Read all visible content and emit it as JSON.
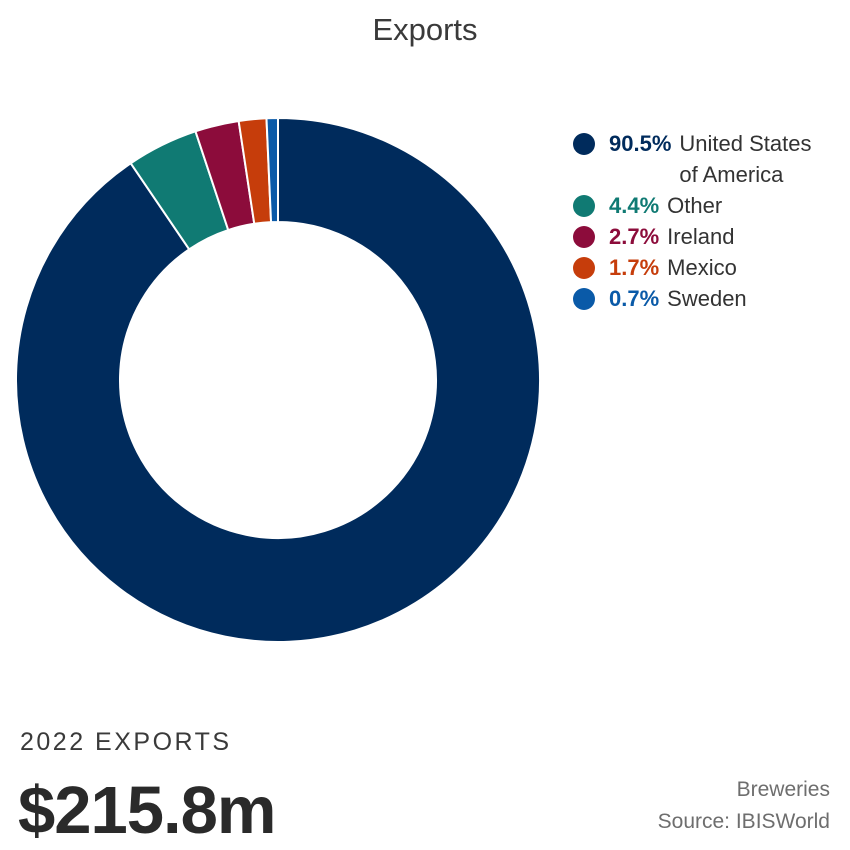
{
  "chart_data": {
    "type": "pie",
    "title": "Exports",
    "donut": true,
    "slices": [
      {
        "label": "United States of America",
        "pct_label": "90.5%",
        "value": 90.5,
        "color": "#002b5c"
      },
      {
        "label": "Other",
        "pct_label": "4.4%",
        "value": 4.4,
        "color": "#107a73"
      },
      {
        "label": "Ireland",
        "pct_label": "2.7%",
        "value": 2.7,
        "color": "#8c0c3b"
      },
      {
        "label": "Mexico",
        "pct_label": "1.7%",
        "value": 1.7,
        "color": "#c63d0b"
      },
      {
        "label": "Sweden",
        "pct_label": "0.7%",
        "value": 0.7,
        "color": "#0a5aa8"
      }
    ],
    "legend_position": "right"
  },
  "summary": {
    "label": "2022 EXPORTS",
    "value": "$215.8m"
  },
  "footer": {
    "industry": "Breweries",
    "source": "Source: IBISWorld"
  }
}
